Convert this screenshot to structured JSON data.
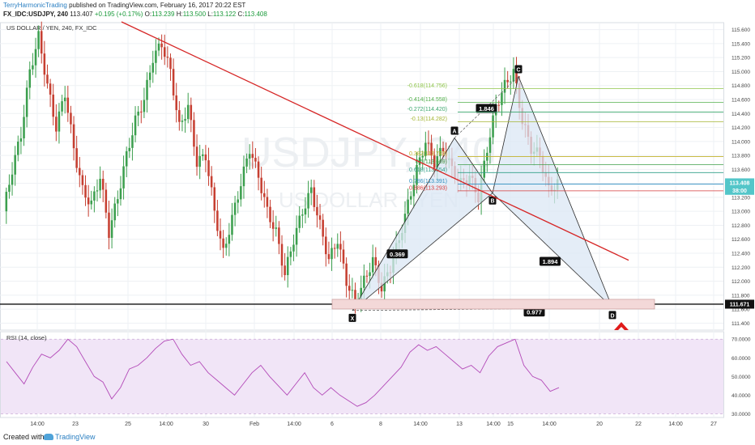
{
  "header": {
    "author": "TerryHarmonicTrading",
    "published_text": "published on TradingView.com, February 16, 2017 20:22 EST",
    "symbol": "FX_IDC:USDJPY, 240",
    "last": "113.407",
    "change": "+0.195 (+0.17%)",
    "o_label": "O:",
    "o": "113.239",
    "h_label": "H:",
    "h": "113.500",
    "l_label": "L:",
    "l": "113.122",
    "c_label": "C:",
    "c": "113.408"
  },
  "footer": {
    "created": "Created with",
    "brand": "TradingView"
  },
  "chart_data": {
    "type": "candlestick",
    "title": "US DOLLAR / YEN, 240, FX_IDC",
    "watermark_symbol": "USDJPY, 240",
    "watermark_name": "US DOLLAR / YEN",
    "ylim": [
      111.3,
      115.7
    ],
    "yticks": [
      "115.600",
      "115.400",
      "115.200",
      "115.000",
      "114.800",
      "114.600",
      "114.400",
      "114.200",
      "114.000",
      "113.800",
      "113.600",
      "113.400",
      "113.200",
      "113.000",
      "112.800",
      "112.600",
      "112.400",
      "112.200",
      "112.000",
      "111.800",
      "111.600",
      "111.400"
    ],
    "xticks": [
      "14:00",
      "23",
      "25",
      "14:00",
      "30",
      "Feb",
      "14:00",
      "6",
      "8",
      "14:00",
      "13",
      "14:00",
      "15",
      "14:00",
      "20",
      "22",
      "14:00",
      "27"
    ],
    "price_path": [
      113.0,
      113.6,
      114.1,
      115.0,
      115.5,
      114.8,
      114.2,
      114.7,
      113.9,
      113.3,
      113.1,
      113.5,
      112.7,
      113.2,
      113.8,
      114.3,
      114.6,
      115.2,
      115.4,
      115.0,
      114.2,
      114.5,
      113.7,
      113.8,
      113.0,
      112.4,
      112.9,
      113.4,
      113.9,
      113.5,
      113.0,
      112.7,
      112.1,
      112.6,
      113.0,
      113.3,
      112.8,
      112.3,
      112.6,
      112.0,
      111.7,
      112.0,
      112.3,
      111.9,
      112.2,
      112.6,
      113.1,
      113.6,
      114.0,
      113.7,
      113.9,
      113.6,
      113.4,
      113.5,
      113.2,
      113.9,
      114.5,
      114.8,
      115.0,
      114.3,
      113.9,
      113.8,
      113.3,
      113.4
    ],
    "harmonic": {
      "points": [
        {
          "label": "X",
          "price": 111.58
        },
        {
          "label": "A",
          "price": 114.05
        },
        {
          "label": "B",
          "price": 113.26
        },
        {
          "label": "C",
          "price": 114.93
        },
        {
          "label": "D",
          "price": 111.62
        }
      ],
      "ratios": [
        "0.369",
        "1.846",
        "1.894",
        "0.977"
      ]
    },
    "fib_levels": [
      {
        "label": "-0.618(114.756)",
        "price": 114.756,
        "color": "#8fc54a"
      },
      {
        "label": "-0.414(114.558)",
        "price": 114.558,
        "color": "#53b04b"
      },
      {
        "label": "-0.272(114.420)",
        "price": 114.42,
        "color": "#3aa66c"
      },
      {
        "label": "-0.13(114.282)",
        "price": 114.282,
        "color": "#a4b534"
      },
      {
        "label": "0.382(113.783)",
        "price": 113.783,
        "color": "#c3b22a"
      },
      {
        "label": "0.5(113.669)",
        "price": 113.669,
        "color": "#3e9e48"
      },
      {
        "label": "0.618(113.554)",
        "price": 113.554,
        "color": "#2e9e87"
      },
      {
        "label": "0.786(113.391)",
        "price": 113.391,
        "color": "#2e8ec0"
      },
      {
        "label": "0.886(113.293)",
        "price": 113.293,
        "color": "#d63a3a"
      }
    ],
    "price_badges": [
      {
        "label": "113.408",
        "price": 113.408,
        "color": "#53c6c9"
      },
      {
        "label": "38:00",
        "price": 113.3,
        "color": "#53c6c9"
      },
      {
        "label": "111.671",
        "price": 111.671,
        "color": "#111111"
      }
    ],
    "support_level": 111.671,
    "rsi": {
      "title": "RSI (14, close)",
      "ylim": [
        28,
        74
      ],
      "yticks": [
        "70.0000",
        "60.0000",
        "50.0000",
        "40.0000",
        "30.0000"
      ],
      "values": [
        58,
        52,
        46,
        55,
        62,
        60,
        64,
        70,
        66,
        58,
        50,
        47,
        38,
        44,
        54,
        56,
        60,
        65,
        69,
        70,
        62,
        56,
        58,
        52,
        48,
        44,
        40,
        46,
        52,
        56,
        50,
        45,
        40,
        46,
        52,
        44,
        40,
        44,
        40,
        37,
        34,
        36,
        40,
        45,
        50,
        55,
        63,
        67,
        64,
        66,
        62,
        58,
        54,
        56,
        52,
        61,
        66,
        68,
        70,
        56,
        50,
        48,
        42,
        44
      ]
    },
    "colors": {
      "up": "#3c9f4e",
      "down": "#c63f31",
      "trendline": "#d62626",
      "pattern_fill": "#dbe7f4",
      "support_zone": "#f3d8d8",
      "rsi_band": "#f1e5f7",
      "rsi_line": "#b34ab8",
      "arrow": "#e01b1b"
    }
  }
}
